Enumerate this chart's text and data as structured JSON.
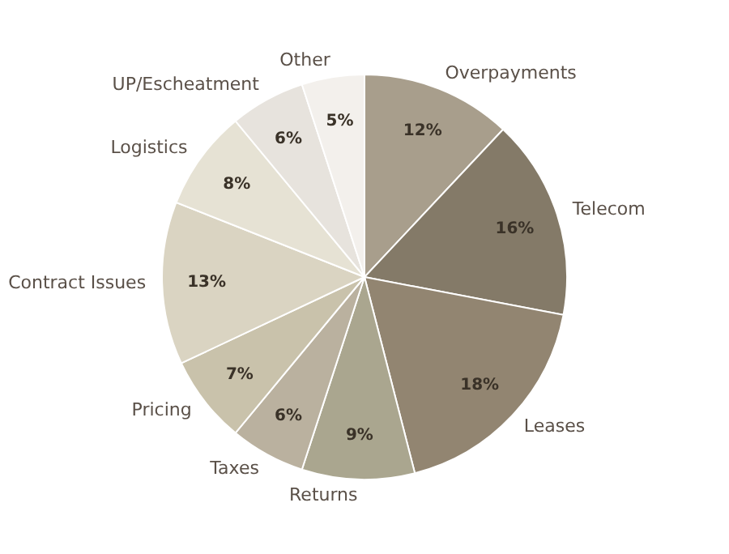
{
  "chart_data": {
    "type": "pie",
    "categories": [
      "Overpayments",
      "Telecom",
      "Leases",
      "Returns",
      "Taxes",
      "Pricing",
      "Contract Issues",
      "Logistics",
      "UP/Escheatment",
      "Other"
    ],
    "values": [
      12,
      16,
      18,
      9,
      6,
      7,
      13,
      8,
      6,
      5
    ],
    "value_labels": [
      "12%",
      "16%",
      "18%",
      "9%",
      "6%",
      "7%",
      "13%",
      "8%",
      "6%",
      "5%"
    ],
    "colors": [
      "#a89e8c",
      "#847a68",
      "#928571",
      "#aaa68f",
      "#bab19f",
      "#c9c2ab",
      "#dad4c2",
      "#e6e2d4",
      "#e7e3dd",
      "#f3f0ec"
    ],
    "legend": false
  }
}
